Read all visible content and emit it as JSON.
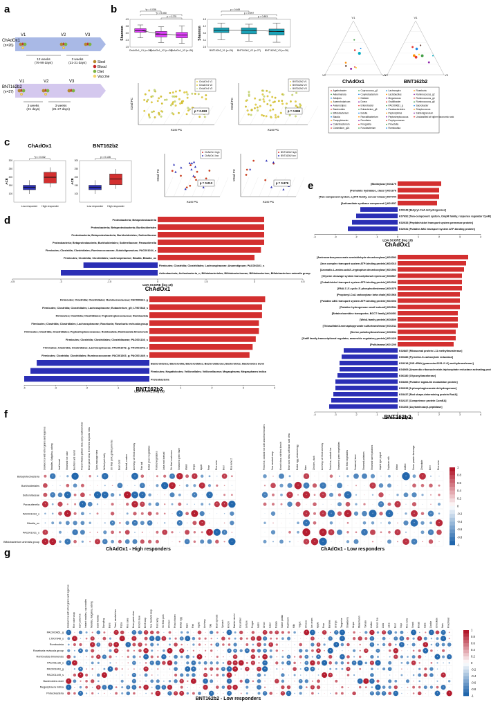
{
  "panels": {
    "a": "a",
    "b": "b",
    "c": "c",
    "d": "d",
    "e": "e",
    "f": "f",
    "g": "g"
  },
  "panel_a": {
    "row1_label": "ChAdOx1",
    "row1_n": "(n=26)",
    "row2_label": "BNT162b2",
    "row2_n": "(n=27)",
    "visits": [
      "V1",
      "V2",
      "V3"
    ],
    "row1_int1": "12 weeks",
    "row1_int1b": "(76-99 days)",
    "row1_int2": "3 weeks",
    "row1_int2b": "(21-31 days)",
    "row2_int1": "3 weeks",
    "row2_int1b": "(21 days)",
    "row2_int2": "3 weeks",
    "row2_int2b": "(21-27 days)",
    "legend": [
      {
        "label": "Stool",
        "color": "#b5882c"
      },
      {
        "label": "Blood",
        "color": "#c62828"
      },
      {
        "label": "Diet",
        "color": "#7cb342"
      },
      {
        "label": "Vaccine",
        "color": "#f3d36b"
      }
    ]
  },
  "colors": {
    "chadox": "#e040fb",
    "bnt": "#1aa3b8",
    "red": "#d32f2f",
    "blue": "#2b2fb5",
    "heat_pos": "#b2182b",
    "heat_neg": "#2166ac"
  },
  "chart_data": [
    {
      "type": "box",
      "id": "b-shannon-chadox",
      "ylabel": "Shannon",
      "categories": [
        "ChAdOx1_V1 (n=26)",
        "ChAdOx1_V2 (n=26)",
        "ChAdOx1_V3 (n=26)"
      ],
      "medians": [
        3.3,
        2.9,
        2.8
      ],
      "q1": [
        3.1,
        2.6,
        2.5
      ],
      "q3": [
        3.5,
        3.2,
        3.1
      ],
      "whisker_low": [
        2.5,
        2.0,
        1.9
      ],
      "whisker_high": [
        3.9,
        3.7,
        3.8
      ],
      "p_values": [
        "*p = 0.036",
        "*p = 0.050",
        "p = 0.275"
      ]
    },
    {
      "type": "box",
      "id": "b-shannon-bnt",
      "ylabel": "Shannon",
      "categories": [
        "BNT162b2_V1 (n=26)",
        "BNT162b2_V2 (n=27)",
        "BNT162b2_V3 (n=26)"
      ],
      "medians": [
        3.9,
        3.9,
        3.8
      ],
      "q1": [
        3.7,
        3.6,
        3.5
      ],
      "q3": [
        4.1,
        4.1,
        4.0
      ],
      "whisker_low": [
        3.1,
        3.0,
        2.9
      ],
      "whisker_high": [
        4.5,
        4.4,
        4.5
      ],
      "p_values": [
        "p = 0.469",
        "p = 0.997",
        "p = 0.893"
      ]
    },
    {
      "type": "scatter",
      "id": "b-pcoa-chadox",
      "legend": [
        "ChAdOx1 V1",
        "ChAdOx1 V2",
        "ChAdOx1 V3"
      ],
      "p_value": "p = 0.993",
      "xlabel": "X1st PC",
      "ylabel": "X2nd PC"
    },
    {
      "type": "scatter",
      "id": "b-pcoa-bnt",
      "legend": [
        "BNT162b2 V1",
        "BNT162b2 V2",
        "BNT162b2 V3"
      ],
      "p_value": "p = 0.999",
      "xlabel": "X1st PC",
      "ylabel": "X2nd PC"
    },
    {
      "type": "ternary",
      "id": "b-ternary",
      "titles": [
        "ChAdOx1",
        "BNT162b2"
      ],
      "vertices": [
        "V1",
        "V2",
        "V3"
      ]
    },
    {
      "type": "box",
      "id": "c-ace-chadox",
      "title": "ChAdOx1",
      "ylabel": "ACE",
      "categories": [
        "Low responder",
        "High responder"
      ],
      "medians": [
        140,
        200
      ],
      "p_value": "*p = 0.032"
    },
    {
      "type": "box",
      "id": "c-ace-bnt",
      "title": "BNT162b2",
      "ylabel": "ACE",
      "categories": [
        "Low responder",
        "High responder"
      ],
      "medians": [
        140,
        190
      ],
      "p_value": "p = 0.136"
    },
    {
      "type": "scatter",
      "id": "c-pcoa-chadox",
      "legend": [
        "ChAdOx1 high",
        "ChAdOx1 low"
      ],
      "p_value": "p = 0.013",
      "xlabel": "X1st PC",
      "ylabel": "X2nd PC"
    },
    {
      "type": "scatter",
      "id": "c-pcoa-bnt",
      "legend": [
        "BNT162b2 high",
        "BNT162b2 low"
      ],
      "p_value": "p = 0.976",
      "xlabel": "X1st PC",
      "ylabel": "X2nd PC"
    },
    {
      "type": "bar",
      "id": "d-chadox",
      "title": "ChAdOx1",
      "xlabel": "LDA SCORE (log 10)",
      "xlim": [
        -4.5,
        4.5
      ],
      "categories": [
        "Proteobacteria; Betaproteobacteria",
        "Proteobacteria; Betaproteobacteria; Burkholderiales",
        "Proteobacteria; Betaproteobacteria; Burkholderiales; Sutterellaceae",
        "Proteobacteria; Betaproteobacteria; Burkholderiales; Sutterellaceae; Parasutterella",
        "Firmicutes; Clostridia; Clostridiales; Ruminococcaceae; Subdoligranulum; PAC001034_s",
        "Firmicutes; Clostridia; Clostridiales; Lachnospiraceae; Blautia; Blautia_uc",
        "Firmicutes; Clostridia; Clostridiales; Lachnospiraceae; Anaerotignum; PAC001021_s",
        "Actinobacteria; Actinobacteria_c; Bifidobacteriales; Bifidobacteriaceae; Bifidobacterium; Bifidobacterium animalis group"
      ],
      "values": [
        3.3,
        3.3,
        3.3,
        3.3,
        3.2,
        3.0,
        -2.3,
        -3.0
      ]
    },
    {
      "type": "bar",
      "id": "d-bnt",
      "title": "BNT162b2",
      "xlabel": "LDA SCORE (log 10)",
      "xlim": [
        -4,
        4
      ],
      "categories": [
        "Firmicutes; Clostridia; Clostridiales; Ruminococcaceae; PAC000661_g",
        "Firmicutes; Clostridia; Clostridiales; Lachnospiraceae; Eubacterium_g5; LT907848_s",
        "Firmicutes; Clostridia; Clostridiales; Peptostreptococcaceae; Romboutsia",
        "Firmicutes; Clostridia; Clostridiales; Lachnospiraceae; Roseburia; Roseburia reviscola group",
        "Firmicutes; Clostridia; Clostridiales; Peptostreptococcaceae; Romboutsia; Romboutsia timonensis",
        "Firmicutes; Clostridia; Clostridiales; Clostridiaceae; PAC001136_s",
        "Firmicutes; Clostridia; Clostridiales; Lachnospiraceae; PAC001043_g; PAC001043_s",
        "Firmicutes; Clostridia; Clostridiales; Ruminococcaceae; PAC001303_g; PAC001449_s",
        "Bacteroidetes; Bacteroidia; Bacteroidales; Bacteroidaceae; Bacteroides; Bacteroides dorei",
        "Firmicutes; Negativicutes; Veillonellales; Veillonellaceae; Megasphaera; Megasphaera indica",
        "Proteobacteria"
      ],
      "values": [
        3.7,
        3.6,
        3.6,
        3.5,
        3.5,
        3.4,
        3.3,
        3.2,
        -3.6,
        -3.8,
        -4.0
      ]
    },
    {
      "type": "bar",
      "id": "e-chadox",
      "title": "ChAdOx1",
      "xlabel": "LDA SCORE (log 10)",
      "xlim": [
        -4,
        4
      ],
      "categories": [
        "[Biotinylase] K01179",
        "[Fumarate hydratase, class I] K01676",
        "[Two-component system, LytTR family, sensor kinase] K07704",
        "[Anthranilate synthase component I] K01657",
        "K00248 [Butyryl-CoA dehydrogenase]",
        "K07692 [Two-component system, OmpR family, response regulator CpxR]",
        "K02033 [Peptide/nickel transport system permease protein]",
        "K02031 [Putative ABC transport system ATP-binding protein]"
      ],
      "values": [
        2.1,
        2.0,
        2.0,
        1.9,
        -1.8,
        -2.0,
        -2.2,
        -2.4
      ]
    },
    {
      "type": "bar",
      "id": "e-bnt",
      "title": "BNT162b2",
      "xlabel": "LDA SCORE (log 10)",
      "xlim": [
        -4,
        4
      ],
      "categories": [
        "[Aminocarboxymuconate-semialdehyde decarboxylase] K03392",
        "[Iron complex transport system ATP-binding protein] K02013",
        "[Aromatic-L-amino-acid/L-tryptophan decarboxylase] K01593",
        "[Glycine cleavage system transcriptional repressor] K03567",
        "[Cobalt/nickel transport system ATP-binding protein] K02006",
        "[RNA 2',3'-cyclic 3'-phosphodiesterase] K01975",
        "[Propionyl-CoA carboxylase beta chain] K01966",
        "[Putative ABC transport system ATP-binding protein] K02003",
        "[Putative hydrogenase small subunit] K00534",
        "[Betaine/carnitine transporter, BCCT family] K03451",
        "[WrbA family protein] K03809",
        "[Thiosulfate/3-mercaptopyruvate sulfurtransferase] K01011",
        "[Serine palmitoyltransferase] K00654",
        "[GntR family transcriptional regulator, anaerobic regulatory protein] K01420",
        "[Pullulanase] K01200",
        "K02887 [Ribosomal protein L11 methyltransferase]",
        "K00286 [Pyrroline-5-carboxylate reductase]",
        "K03218 [23S rRNA (guanosine2251-2'-O)-methyltransferase]",
        "K04069 [Anaerobic ribonucleoside-triphosphate reductase activating protein]",
        "K06180 [Glycosyltransferase]",
        "K03406 [Putative sigma-54 modulation protein]",
        "K00033 [6-phosphogluconate dehydrogenase]",
        "K03437 [Rod shape-determining protein RodA]",
        "K02237 [Competence protein ComEA]",
        "K01303 [Acylaminoacyl-peptidase]"
      ],
      "values": [
        3.4,
        3.3,
        3.2,
        3.1,
        3.1,
        3.1,
        3.0,
        3.0,
        3.0,
        2.9,
        2.9,
        2.9,
        2.8,
        2.8,
        2.7,
        -2.6,
        -2.7,
        -2.8,
        -2.8,
        -2.9,
        -3.0,
        -3.0,
        -3.1,
        -3.2,
        -3.3
      ]
    },
    {
      "type": "heatmap",
      "id": "f-high",
      "title": "ChAdOx1 - High responders",
      "rows": [
        "Betaproteobacteria",
        "Burkholderiales",
        "Sutterellaceae",
        "Parasutterella",
        "PAC001034_s",
        "Blautia_uc",
        "PAC001021_s",
        "Bifidobacterium animalis group"
      ],
      "columns": [
        "Cooked rice with other grains and legumes",
        "Noodles, Kalguksu, udong",
        "Leaf bread",
        "Steamed rice cake",
        "Beef loin and round",
        "Frozen Alaska pollack stew, spicy seafood stew",
        "Bean paste stew, fermented soybean stew",
        "Spicy sausage stew",
        "Grilled pork belly",
        "Stir fried pork, grilled pork ribs",
        "Bean curd",
        "Hairtail, croaker",
        "Anchovy, stir fried anchovy",
        "Fish ball",
        "Boiled green vegetables",
        "Pickled vegetables",
        "Lotus root braised",
        "Stir fried mushroom",
        "Seasoned green laver",
        "Melon",
        "Grape",
        "Apple",
        "Pear",
        "Rice wine",
        "Beer",
        "Rice wine 2"
      ],
      "clim": [
        -1,
        1
      ]
    },
    {
      "type": "heatmap",
      "id": "f-low",
      "title": "ChAdOx1 - Low responders",
      "rows": [
        "Betaproteobacteria",
        "Burkholderiales",
        "Sutterellaceae",
        "Parasutterella",
        "PAC001034_s",
        "Blautia_uc",
        "PAC001021_s",
        "Bifidobacterium animalis group"
      ],
      "columns": [
        "Fried rice, cooked rice with assorted mixtures",
        "Sea mustard soup",
        "Kimchi stew, stir fried kimchi",
        "Bean curd stew, soft bean curd stew",
        "Boiled egg, steamed egg",
        "Ham",
        "Chicken, duck",
        "Anchovy, stir fried anchovy",
        "Fried rice, cooked rice",
        "Seasoned green vegetables",
        "Stir fried vegetables",
        "Seaweed, laver",
        "Steamed potatoes",
        "Steamed sweet potatoes",
        "Liquid type yogurt",
        "Soybean milk",
        "Melon",
        "Coffee",
        "Green powder beverage",
        "Chocolate",
        "Beer",
        "Rice wine"
      ],
      "clim": [
        -1,
        1
      ]
    },
    {
      "type": "heatmap",
      "id": "g-low",
      "title": "BNT162b2 - Low responders",
      "rows": [
        "PAC000661_g",
        "LT907848_s",
        "Romboutsia",
        "Roseburia reviscola group",
        "Romboutsia timonensis",
        "PAC001136_s",
        "PAC001043_g",
        "PAC001449_s",
        "Bacteroides dorei",
        "Megasphaera indica",
        "Proteobacteria"
      ],
      "clim": [
        -1,
        1
      ]
    }
  ],
  "texts": {
    "b_scatter_xlabel": "X1st PC",
    "b_scatter_ylabel": "X2nd PC",
    "tern_title1": "ChAdOx1",
    "tern_title2": "BNT162b2",
    "c_title1": "ChAdOx1",
    "c_title2": "BNT162b2",
    "c_p1": "*p = 0.032",
    "c_p2": "p = 0.136",
    "c_xcat1": "Low responder",
    "c_xcat2": "High responder",
    "c_ylabel": "ACE",
    "d_title1": "ChAdOx1",
    "d_title2": "BNT162b2",
    "d_xlabel": "LDA SCORE (log 10)",
    "e_title1": "ChAdOx1",
    "e_title2": "BNT162b2",
    "f_title1": "ChAdOx1 - High responders",
    "f_title2": "ChAdOx1 - Low responders",
    "g_title": "BNT162b2 - Low responders",
    "shannon": "Shannon",
    "tern_legend": [
      "Agathobacter",
      "Akkermansia",
      "Alistipes",
      "Anaerobutyricum",
      "Anaerostipes",
      "Bacteroides",
      "Bifidobacterium",
      "Blautia",
      "Campylobacter",
      "Catenibacterium",
      "Clostridium_g24",
      "Coprococcus_g2",
      "Corynebacterium",
      "Dialister",
      "Dorea",
      "Enterobacter",
      "Eubacterium_g5",
      "Exiella",
      "Faecalibacterium",
      "Fenollaria",
      "Finegoldia",
      "Fusobacterium",
      "Lachnospira",
      "Lactobacillus",
      "Megamonas",
      "Oscillibacter",
      "PAC000661_g",
      "Parabacteroides",
      "Peptoniphilus",
      "Peptostreptococcus",
      "Porphyromonas",
      "Prevotella",
      "Romboutsia",
      "Roseburia",
      "Ruminococcus_g2",
      "Ruminococcus_g4",
      "Ruminococcus_g5",
      "Sporobacter",
      "Streptococcus",
      "Subdoligranulum",
      "Unclassified at higher taxonomic rank"
    ],
    "heat_ticks": [
      "1",
      "0.8",
      "0.6",
      "0.4",
      "0.2",
      "0",
      "-0.2",
      "-0.4",
      "-0.6",
      "-0.8",
      "-1"
    ]
  }
}
